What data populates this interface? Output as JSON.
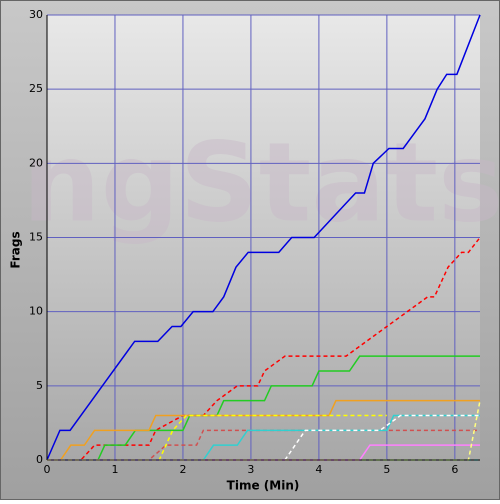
{
  "chart_data": {
    "type": "line",
    "watermark": "ngStats",
    "xlabel": "Time (Min)",
    "ylabel": "Frags",
    "xlim": [
      0,
      6.37
    ],
    "ylim": [
      0,
      30
    ],
    "xticks": [
      0,
      1,
      2,
      3,
      4,
      5,
      6
    ],
    "yticks": [
      0,
      5,
      10,
      15,
      20,
      25,
      30
    ],
    "grid": true,
    "series": [
      {
        "color": "#0000e0",
        "dashed": false,
        "x": [
          0,
          0.19,
          0.34,
          1.29,
          1.63,
          1.84,
          1.97,
          2.15,
          2.44,
          2.6,
          2.78,
          2.96,
          3.41,
          3.6,
          3.93,
          4.54,
          4.67,
          4.8,
          5.03,
          5.24,
          5.56,
          5.74,
          5.88,
          6.03,
          6.37
        ],
        "values": [
          0,
          2,
          2,
          8,
          8,
          9,
          9,
          10,
          10,
          11,
          13,
          14,
          14,
          15,
          15,
          18,
          18,
          20,
          21,
          21,
          23,
          25,
          26,
          26,
          30
        ]
      },
      {
        "color": "#ff0000",
        "dashed": true,
        "x": [
          0,
          0.5,
          0.7,
          1.5,
          1.6,
          2.0,
          2.3,
          2.5,
          2.8,
          3.1,
          3.2,
          3.5,
          4.4,
          4.7,
          5.0,
          5.3,
          5.6,
          5.7,
          5.9,
          6.1,
          6.2,
          6.37
        ],
        "values": [
          0,
          0,
          1,
          1,
          2,
          3,
          3,
          4,
          5,
          5,
          6,
          7,
          7,
          8,
          9,
          10,
          11,
          11,
          13,
          14,
          14,
          15
        ]
      },
      {
        "color": "#22cc22",
        "dashed": false,
        "x": [
          0,
          0.75,
          0.85,
          1.15,
          1.3,
          2.0,
          2.1,
          2.5,
          2.6,
          3.2,
          3.3,
          3.9,
          4.0,
          4.45,
          4.6,
          6.37
        ],
        "values": [
          0,
          0,
          1,
          1,
          2,
          2,
          3,
          3,
          4,
          4,
          5,
          5,
          6,
          6,
          7,
          7
        ]
      },
      {
        "color": "#f0a020",
        "dashed": false,
        "x": [
          0,
          0.2,
          0.35,
          0.55,
          0.7,
          1.5,
          1.6,
          4.15,
          4.25,
          6.37
        ],
        "values": [
          0,
          0,
          1,
          1,
          2,
          2,
          3,
          3,
          4,
          4
        ]
      },
      {
        "color": "#d05050",
        "dashed": true,
        "x": [
          0,
          1.5,
          1.75,
          2.2,
          2.3,
          6.37
        ],
        "values": [
          0,
          0,
          1,
          1,
          2,
          2
        ]
      },
      {
        "color": "#ffff00",
        "dashed": true,
        "x": [
          0,
          1.65,
          1.85,
          2.05,
          5.0
        ],
        "values": [
          0,
          0,
          2,
          3,
          3
        ]
      },
      {
        "color": "#30d0d0",
        "dashed": false,
        "x": [
          0,
          2.3,
          2.45,
          2.8,
          2.95,
          5.0,
          5.1,
          6.37
        ],
        "values": [
          0,
          0,
          1,
          1,
          2,
          2,
          3,
          3
        ]
      },
      {
        "color": "#ffffff",
        "dashed": true,
        "x": [
          0,
          3.5,
          3.8,
          4.9,
          5.2,
          6.37
        ],
        "values": [
          0,
          0,
          2,
          2,
          3,
          3
        ]
      },
      {
        "color": "#60e0e0",
        "dashed": true,
        "x": [
          0,
          6.37
        ],
        "values": [
          0,
          0
        ]
      },
      {
        "color": "#ff80ff",
        "dashed": false,
        "x": [
          0,
          4.6,
          4.75,
          6.37
        ],
        "values": [
          0,
          0,
          1,
          1
        ]
      },
      {
        "color": "#ffff80",
        "dashed": true,
        "x": [
          0,
          6.2,
          6.37
        ],
        "values": [
          0,
          0,
          4
        ]
      }
    ]
  }
}
